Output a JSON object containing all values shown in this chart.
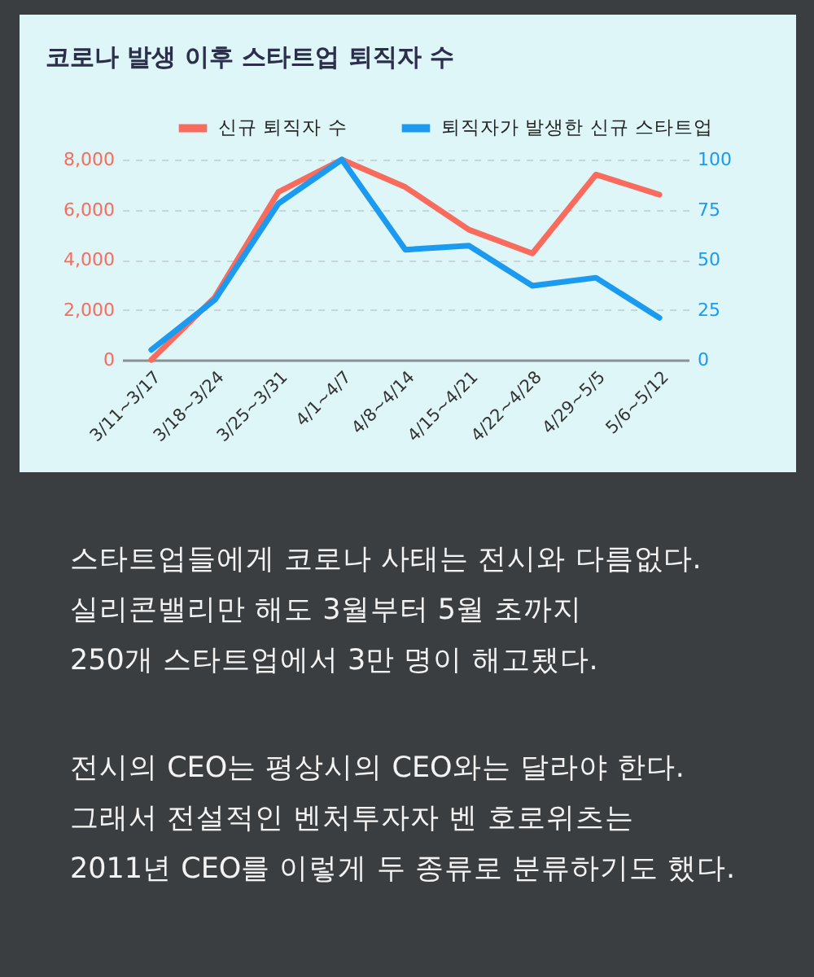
{
  "chart_data": {
    "type": "line",
    "title": "코로나 발생 이후 스타트업 퇴직자 수",
    "categories": [
      "3/11~3/17",
      "3/18~3/24",
      "3/25~3/31",
      "4/1~4/7",
      "4/8~4/14",
      "4/15~4/21",
      "4/22~4/28",
      "4/29~5/5",
      "5/6~5/12"
    ],
    "series": [
      {
        "name": "신규 퇴직자 수",
        "color": "#f86b5d",
        "values": [
          0,
          2500,
          6700,
          8000,
          6900,
          5200,
          4250,
          7400,
          6600
        ]
      },
      {
        "name": "퇴직자가 발생한 신규 스타트업",
        "color": "#1a9af0",
        "axis": "y2",
        "values": [
          5,
          30,
          78,
          100,
          55,
          57,
          37,
          41,
          21
        ]
      }
    ],
    "ylim": [
      0,
      8000
    ],
    "yticks": [
      0,
      {
        "value": 2000,
        "label": "2,000"
      },
      {
        "value": 4000,
        "label": "4,000"
      },
      {
        "value": 6000,
        "label": "6,000"
      },
      {
        "value": 8000,
        "label": "8,000"
      }
    ],
    "y2lim": [
      0,
      100
    ],
    "y2ticks": [
      0,
      25,
      50,
      75,
      100
    ],
    "grid": "y",
    "legend": "top",
    "line_style": "solid",
    "annotations": [
      "스타트업들에게 코로나 사태는 전시와 다름없다.\n실리콘밸리만 해도 3월부터 5월 초까지\n250개 스타트업에서 3만 명이 해고됐다.",
      "전시의 CEO는 평상시의 CEO와는 달라야 한다.\n그래서 전설적인 벤처투자자 벤 호로위츠는\n2011년 CEO를 이렇게 두 종류로 분류하기도 했다."
    ]
  }
}
